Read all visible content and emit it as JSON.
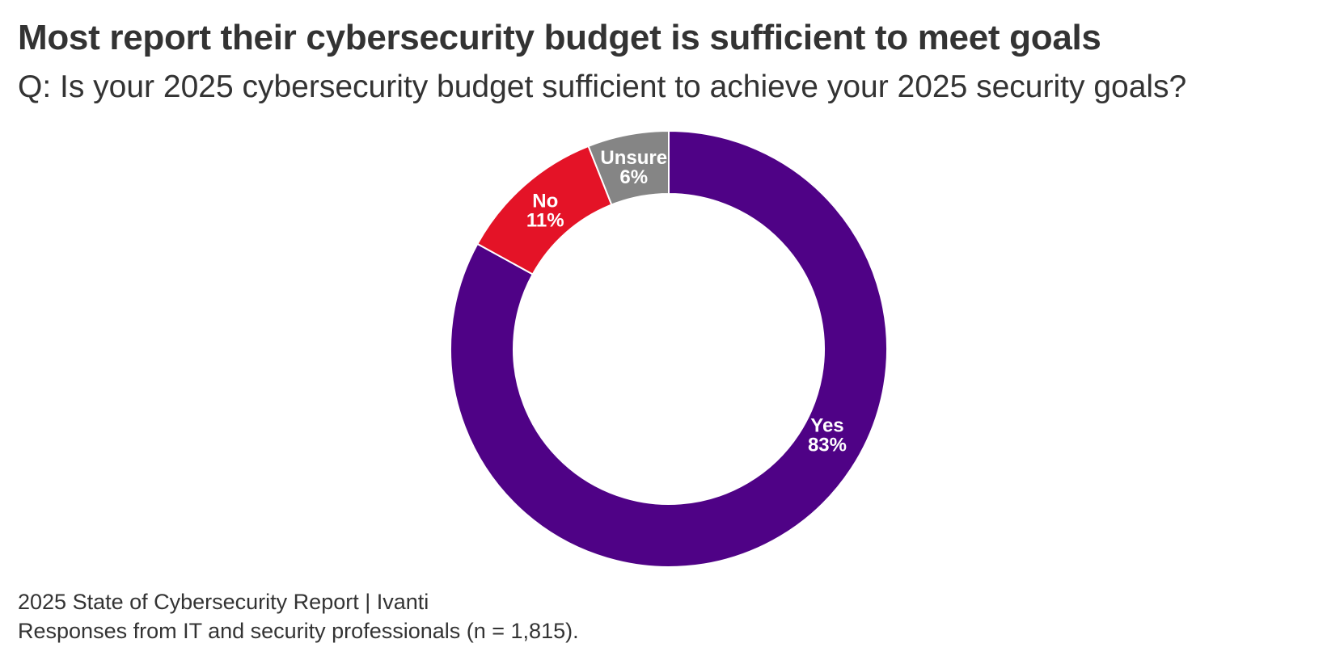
{
  "title": "Most report their cybersecurity budget is sufficient to meet goals",
  "subtitle": "Q: Is your 2025 cybersecurity budget sufficient to achieve your 2025 security goals?",
  "source": "2025 State of Cybersecurity Report | Ivanti",
  "note": "Responses from IT and security professionals (n = 1,815).",
  "chart_data": {
    "type": "pie",
    "variant": "donut",
    "title": "Most report their cybersecurity budget is sufficient to meet goals",
    "subtitle": "Q: Is your 2025 cybersecurity budget sufficient to achieve your 2025 security goals?",
    "categories": [
      "Yes",
      "No",
      "Unsure"
    ],
    "values": [
      83,
      11,
      6
    ],
    "value_labels": [
      "83%",
      "11%",
      "6%"
    ],
    "colors": [
      "#4f0286",
      "#e41327",
      "#858585"
    ],
    "start": "top",
    "direction": "clockwise",
    "legend": "none"
  }
}
